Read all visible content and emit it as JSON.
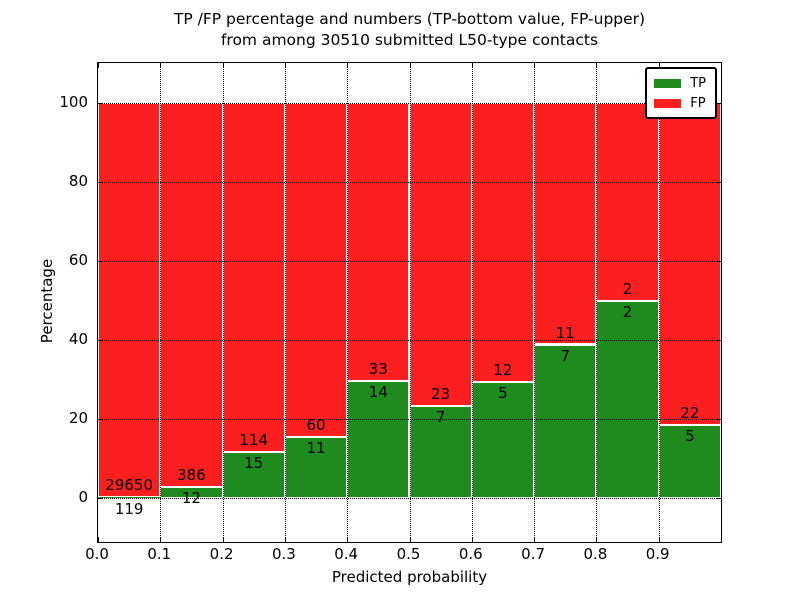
{
  "title": {
    "line1": "TP /FP percentage and numbers (TP-bottom value, FP-upper)",
    "line2": "from among 30510 submitted L50-type contacts"
  },
  "chart_data": {
    "type": "bar",
    "subtype": "stacked-percentage-histogram",
    "title": "TP /FP percentage and numbers (TP-bottom value, FP-upper) from among 30510 submitted L50-type contacts",
    "xlabel": "Predicted probability",
    "ylabel": "Percentage",
    "bin_edges": [
      0.0,
      0.1,
      0.2,
      0.3,
      0.4,
      0.5,
      0.6,
      0.7,
      0.8,
      0.9,
      1.0
    ],
    "x_tick_labels": [
      "0.0",
      "0.1",
      "0.2",
      "0.3",
      "0.4",
      "0.5",
      "0.6",
      "0.7",
      "0.8",
      "0.9"
    ],
    "y_tick_values": [
      0,
      20,
      40,
      60,
      80,
      100
    ],
    "y_tick_labels": [
      "0",
      "20",
      "40",
      "60",
      "80",
      "100"
    ],
    "xlim": [
      0.0,
      1.0
    ],
    "ylim": [
      -11,
      110
    ],
    "grid": "dotted both axes",
    "legend": {
      "position": "upper right",
      "entries": [
        {
          "label": "TP",
          "color": "#1f8b1f"
        },
        {
          "label": "FP",
          "color": "#fb1f1f"
        }
      ]
    },
    "series": [
      {
        "name": "TP",
        "position": "bottom",
        "counts": [
          119,
          12,
          15,
          11,
          14,
          7,
          5,
          7,
          2,
          5
        ]
      },
      {
        "name": "FP",
        "position": "top",
        "counts": [
          29650,
          386,
          114,
          60,
          33,
          23,
          12,
          11,
          2,
          22
        ]
      }
    ],
    "tp_percent_by_bin": [
      0.4,
      3.02,
      11.63,
      15.49,
      29.79,
      23.33,
      29.41,
      38.89,
      50.0,
      18.52
    ],
    "total_submitted_contacts": 30510
  },
  "colors": {
    "tp": "#1f8b1f",
    "fp": "#fb1f1f",
    "grid": "#000000",
    "text": "#000000",
    "background": "#ffffff"
  }
}
